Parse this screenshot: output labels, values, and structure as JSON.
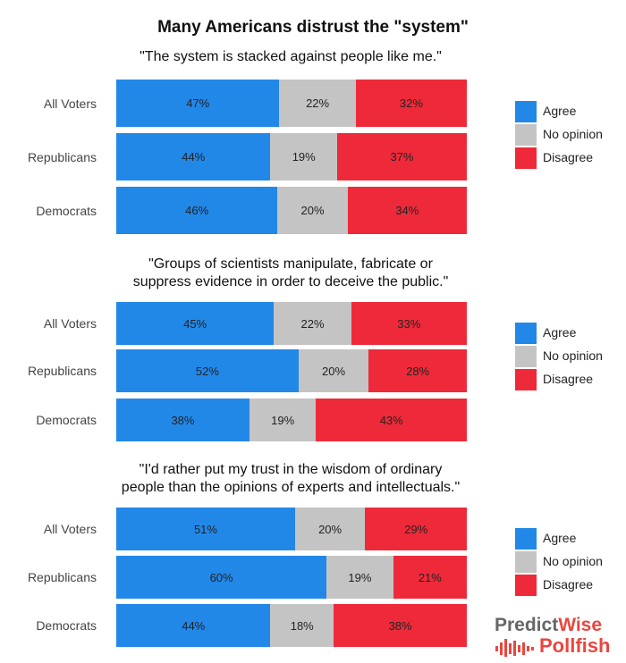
{
  "title": "Many Americans distrust the \"system\"",
  "colors": {
    "agree": "#2288e8",
    "no_opinion": "#c4c4c4",
    "disagree": "#ee2a3a"
  },
  "legend": [
    "Agree",
    "No opinion",
    "Disagree"
  ],
  "logo": {
    "predict": "Predict",
    "wise": "Wise",
    "pollfish": "Pollfish"
  },
  "chart_data": [
    {
      "type": "bar",
      "stacked": true,
      "orientation": "horizontal",
      "subtitle": [
        "\"The system is stacked against people like me.\""
      ],
      "categories": [
        "All Voters",
        "Republicans",
        "Democrats"
      ],
      "xlim": [
        0,
        100
      ],
      "series": [
        {
          "name": "Agree",
          "values": [
            47,
            44,
            46
          ],
          "labels": [
            "47%",
            "44%",
            "46%"
          ]
        },
        {
          "name": "No opinion",
          "values": [
            22,
            19,
            20
          ],
          "labels": [
            "22%",
            "19%",
            "20%"
          ]
        },
        {
          "name": "Disagree",
          "values": [
            32,
            37,
            34
          ],
          "labels": [
            "32%",
            "37%",
            "34%"
          ]
        }
      ]
    },
    {
      "type": "bar",
      "stacked": true,
      "orientation": "horizontal",
      "subtitle": [
        "\"Groups of scientists manipulate, fabricate or",
        "suppress evidence in order to deceive the public.\""
      ],
      "categories": [
        "All Voters",
        "Republicans",
        "Democrats"
      ],
      "xlim": [
        0,
        100
      ],
      "series": [
        {
          "name": "Agree",
          "values": [
            45,
            52,
            38
          ],
          "labels": [
            "45%",
            "52%",
            "38%"
          ]
        },
        {
          "name": "No opinion",
          "values": [
            22,
            20,
            19
          ],
          "labels": [
            "22%",
            "20%",
            "19%"
          ]
        },
        {
          "name": "Disagree",
          "values": [
            33,
            28,
            43
          ],
          "labels": [
            "33%",
            "28%",
            "43%"
          ]
        }
      ]
    },
    {
      "type": "bar",
      "stacked": true,
      "orientation": "horizontal",
      "subtitle": [
        "\"I'd rather put my trust in the wisdom of ordinary",
        "people than the opinions of experts and intellectuals.\""
      ],
      "categories": [
        "All Voters",
        "Republicans",
        "Democrats"
      ],
      "xlim": [
        0,
        100
      ],
      "series": [
        {
          "name": "Agree",
          "values": [
            51,
            60,
            44
          ],
          "labels": [
            "51%",
            "60%",
            "44%"
          ]
        },
        {
          "name": "No opinion",
          "values": [
            20,
            19,
            18
          ],
          "labels": [
            "20%",
            "19%",
            "18%"
          ]
        },
        {
          "name": "Disagree",
          "values": [
            29,
            21,
            38
          ],
          "labels": [
            "29%",
            "21%",
            "38%"
          ]
        }
      ]
    }
  ]
}
